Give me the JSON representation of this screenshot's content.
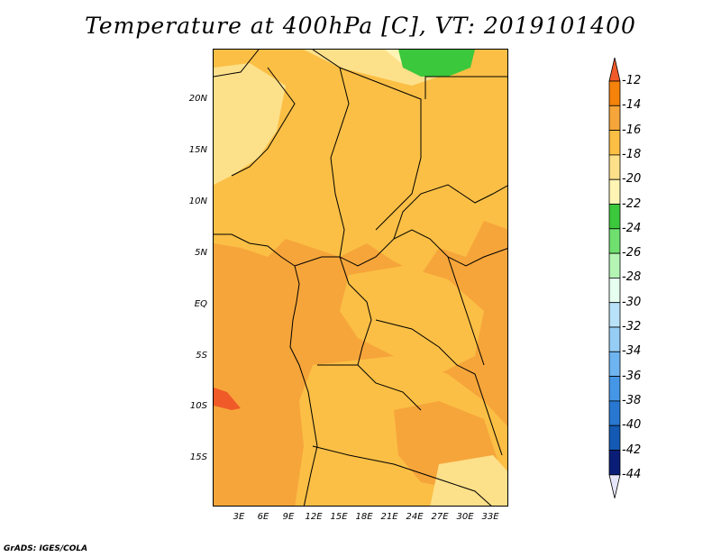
{
  "title": "Temperature at 400hPa [C], VT: 2019101400",
  "footer": "GrADS: IGES/COLA",
  "axes": {
    "y_ticks": [
      "20N",
      "15N",
      "10N",
      "5N",
      "EQ",
      "5S",
      "10S",
      "15S"
    ],
    "x_ticks": [
      "3E",
      "6E",
      "9E",
      "12E",
      "15E",
      "18E",
      "21E",
      "24E",
      "27E",
      "30E",
      "33E"
    ]
  },
  "colorbar": {
    "labels": [
      "-12",
      "-14",
      "-16",
      "-18",
      "-20",
      "-22",
      "-24",
      "-26",
      "-28",
      "-30",
      "-32",
      "-34",
      "-36",
      "-38",
      "-40",
      "-42",
      "-44"
    ],
    "colors": [
      "#f05a28",
      "#f5820a",
      "#f6a53a",
      "#fbbf45",
      "#fde08a",
      "#fef5b5",
      "#3cc83c",
      "#6fe06f",
      "#b4f5b4",
      "#e6fff0",
      "#b9e2f8",
      "#96cdf5",
      "#6eb4f0",
      "#4696e6",
      "#2878d2",
      "#145ab4",
      "#0a1e78",
      "#e6e6fa"
    ]
  }
}
